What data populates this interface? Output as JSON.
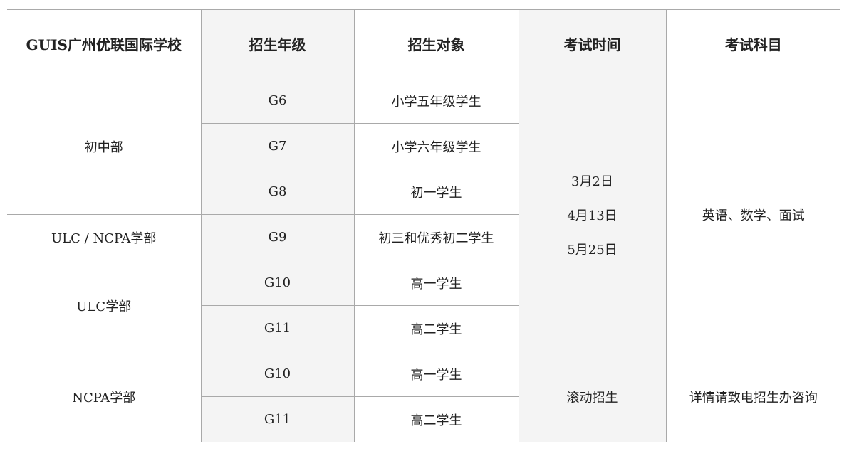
{
  "headers": [
    "GUIS广州优联国际学校",
    "招生年级",
    "招生对象",
    "考试时间",
    "考试科目"
  ],
  "sections": {
    "junior": "初中部",
    "ulc_ncpa": "ULC / NCPA学部",
    "ulc": "ULC学部",
    "ncpa": "NCPA学部"
  },
  "rows": [
    {
      "grade": "G6",
      "target": "小学五年级学生"
    },
    {
      "grade": "G7",
      "target": "小学六年级学生"
    },
    {
      "grade": "G8",
      "target": "初一学生"
    },
    {
      "grade": "G9",
      "target": "初三和优秀初二学生"
    },
    {
      "grade": "G10",
      "target": "高一学生"
    },
    {
      "grade": "G11",
      "target": "高二学生"
    },
    {
      "grade": "G10",
      "target": "高一学生"
    },
    {
      "grade": "G11",
      "target": "高二学生"
    }
  ],
  "exam_dates": [
    "3月2日",
    "4月13日",
    "5月25日"
  ],
  "exam_subjects": "英语、数学、面试",
  "ncpa_exam_time": "滚动招生",
  "ncpa_exam_subjects": "详情请致电招生办咨询",
  "colors": {
    "shaded_column": "#f4f4f4",
    "border": "#a9a9a9"
  }
}
